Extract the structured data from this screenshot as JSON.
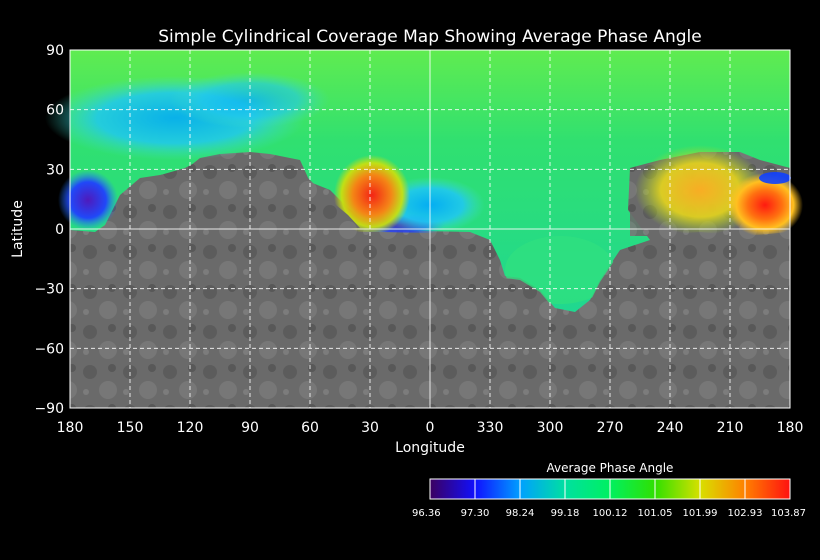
{
  "title": "Simple Cylindrical Coverage Map Showing Average Phase Angle",
  "xlabel": "Longitude",
  "ylabel": "Latitude",
  "lon_ticks": [
    "180",
    "150",
    "120",
    "90",
    "60",
    "30",
    "0",
    "330",
    "300",
    "270",
    "240",
    "210",
    "180"
  ],
  "lat_ticks": [
    "90",
    "60",
    "30",
    "0",
    "−30",
    "−60",
    "−90"
  ],
  "colorbar": {
    "title": "Average Phase Angle",
    "labels": [
      "96.36",
      "97.30",
      "98.24",
      "99.18",
      "100.12",
      "101.05",
      "101.99",
      "102.93",
      "103.87"
    ],
    "colors": [
      "#3c0060",
      "#1010ff",
      "#00a0ff",
      "#00e0a0",
      "#00f060",
      "#30e000",
      "#d8e000",
      "#ff8000",
      "#ff1010"
    ]
  },
  "colors": {
    "background": "#000000",
    "grid": "#ffffff",
    "terrain": "#6e6e6e"
  }
}
